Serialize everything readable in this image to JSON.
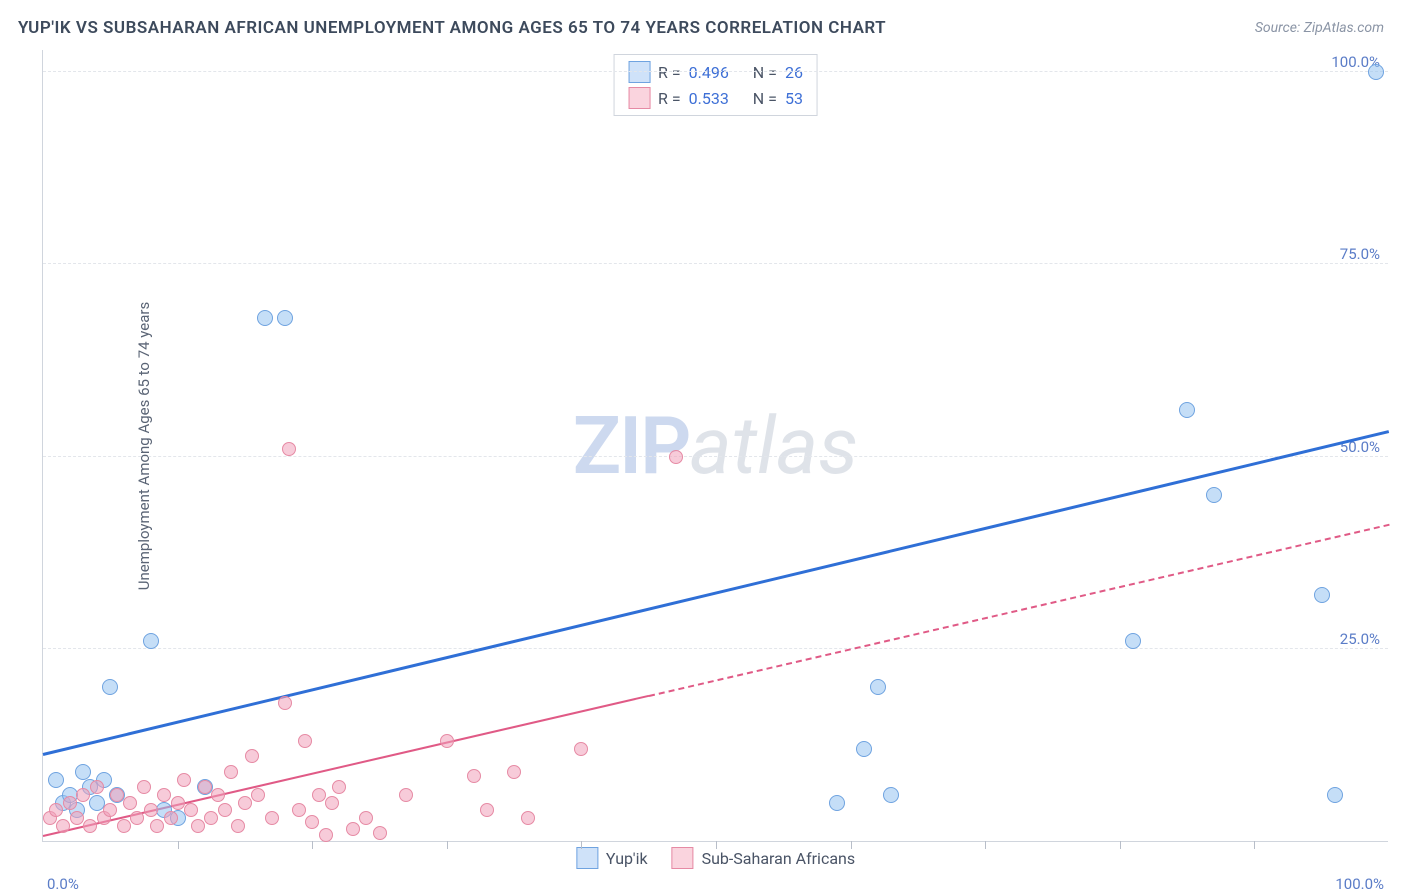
{
  "chart": {
    "type": "scatter",
    "title": "YUP'IK VS SUBSAHARAN AFRICAN UNEMPLOYMENT AMONG AGES 65 TO 74 YEARS CORRELATION CHART",
    "source": "Source: ZipAtlas.com",
    "y_axis_label": "Unemployment Among Ages 65 to 74 years",
    "background_color": "#ffffff",
    "grid_color": "#e3e6eb",
    "axis_color": "#d0d5dd",
    "tick_label_color": "#5a7cc7",
    "title_fontsize": 17,
    "label_fontsize": 15,
    "xlim": [
      0,
      100
    ],
    "ylim": [
      0,
      103
    ],
    "y_ticks": [
      {
        "v": 25,
        "label": "25.0%"
      },
      {
        "v": 50,
        "label": "50.0%"
      },
      {
        "v": 75,
        "label": "75.0%"
      },
      {
        "v": 100,
        "label": "100.0%"
      }
    ],
    "x_ticks_minor": [
      10,
      20,
      30,
      40,
      50,
      60,
      70,
      80,
      90
    ],
    "x_tick_left": "0.0%",
    "x_tick_right": "100.0%",
    "watermark": {
      "zip": "ZIP",
      "atlas": "atlas"
    },
    "legend_top": [
      {
        "swatch_fill": "#cfe2f9",
        "swatch_border": "#6fa3e0",
        "r_label": "R =",
        "r_val": "0.496",
        "n_label": "N =",
        "n_val": "26"
      },
      {
        "swatch_fill": "#fad4de",
        "swatch_border": "#e68aa4",
        "r_label": "R =",
        "r_val": "0.533",
        "n_label": "N =",
        "n_val": "53"
      }
    ],
    "legend_bottom": [
      {
        "swatch_fill": "#cfe2f9",
        "swatch_border": "#6fa3e0",
        "label": "Yup'ik"
      },
      {
        "swatch_fill": "#fad4de",
        "swatch_border": "#e68aa4",
        "label": "Sub-Saharan Africans"
      }
    ],
    "series": [
      {
        "name": "yupik",
        "marker_fill": "rgba(150,195,240,0.55)",
        "marker_stroke": "#6fa3e0",
        "marker_size": 16,
        "trend": {
          "x1": 0,
          "y1": 11,
          "x2": 100,
          "y2": 53,
          "color": "#2f6fd6",
          "width": 3,
          "dash": "solid",
          "dash_from_x": 100
        },
        "points": [
          {
            "x": 1,
            "y": 8
          },
          {
            "x": 1.5,
            "y": 5
          },
          {
            "x": 2,
            "y": 6
          },
          {
            "x": 2.5,
            "y": 4
          },
          {
            "x": 3,
            "y": 9
          },
          {
            "x": 3.5,
            "y": 7
          },
          {
            "x": 4,
            "y": 5
          },
          {
            "x": 4.5,
            "y": 8
          },
          {
            "x": 5,
            "y": 20
          },
          {
            "x": 5.5,
            "y": 6
          },
          {
            "x": 8,
            "y": 26
          },
          {
            "x": 9,
            "y": 4
          },
          {
            "x": 10,
            "y": 3
          },
          {
            "x": 12,
            "y": 7
          },
          {
            "x": 16.5,
            "y": 68
          },
          {
            "x": 18,
            "y": 68
          },
          {
            "x": 59,
            "y": 5
          },
          {
            "x": 61,
            "y": 12
          },
          {
            "x": 62,
            "y": 20
          },
          {
            "x": 63,
            "y": 6
          },
          {
            "x": 81,
            "y": 26
          },
          {
            "x": 85,
            "y": 56
          },
          {
            "x": 87,
            "y": 45
          },
          {
            "x": 95,
            "y": 32
          },
          {
            "x": 96,
            "y": 6
          },
          {
            "x": 99,
            "y": 100
          }
        ]
      },
      {
        "name": "subsaharan",
        "marker_fill": "rgba(240,160,185,0.55)",
        "marker_stroke": "#e68aa4",
        "marker_size": 14,
        "trend": {
          "x1": 0,
          "y1": 0.5,
          "x2": 100,
          "y2": 41,
          "color": "#e05a86",
          "width": 2,
          "dash": "dashed",
          "dash_from_x": 45
        },
        "points": [
          {
            "x": 0.5,
            "y": 3
          },
          {
            "x": 1,
            "y": 4
          },
          {
            "x": 1.5,
            "y": 2
          },
          {
            "x": 2,
            "y": 5
          },
          {
            "x": 2.5,
            "y": 3
          },
          {
            "x": 3,
            "y": 6
          },
          {
            "x": 3.5,
            "y": 2
          },
          {
            "x": 4,
            "y": 7
          },
          {
            "x": 4.5,
            "y": 3
          },
          {
            "x": 5,
            "y": 4
          },
          {
            "x": 5.5,
            "y": 6
          },
          {
            "x": 6,
            "y": 2
          },
          {
            "x": 6.5,
            "y": 5
          },
          {
            "x": 7,
            "y": 3
          },
          {
            "x": 7.5,
            "y": 7
          },
          {
            "x": 8,
            "y": 4
          },
          {
            "x": 8.5,
            "y": 2
          },
          {
            "x": 9,
            "y": 6
          },
          {
            "x": 9.5,
            "y": 3
          },
          {
            "x": 10,
            "y": 5
          },
          {
            "x": 10.5,
            "y": 8
          },
          {
            "x": 11,
            "y": 4
          },
          {
            "x": 11.5,
            "y": 2
          },
          {
            "x": 12,
            "y": 7
          },
          {
            "x": 12.5,
            "y": 3
          },
          {
            "x": 13,
            "y": 6
          },
          {
            "x": 13.5,
            "y": 4
          },
          {
            "x": 14,
            "y": 9
          },
          {
            "x": 14.5,
            "y": 2
          },
          {
            "x": 15,
            "y": 5
          },
          {
            "x": 15.5,
            "y": 11
          },
          {
            "x": 16,
            "y": 6
          },
          {
            "x": 17,
            "y": 3
          },
          {
            "x": 18,
            "y": 18
          },
          {
            "x": 18.3,
            "y": 51
          },
          {
            "x": 19,
            "y": 4
          },
          {
            "x": 19.5,
            "y": 13
          },
          {
            "x": 20,
            "y": 2.5
          },
          {
            "x": 20.5,
            "y": 6
          },
          {
            "x": 21,
            "y": 0.8
          },
          {
            "x": 21.5,
            "y": 5
          },
          {
            "x": 22,
            "y": 7
          },
          {
            "x": 23,
            "y": 1.5
          },
          {
            "x": 24,
            "y": 3
          },
          {
            "x": 25,
            "y": 1
          },
          {
            "x": 27,
            "y": 6
          },
          {
            "x": 30,
            "y": 13
          },
          {
            "x": 32,
            "y": 8.5
          },
          {
            "x": 33,
            "y": 4
          },
          {
            "x": 35,
            "y": 9
          },
          {
            "x": 36,
            "y": 3
          },
          {
            "x": 40,
            "y": 12
          },
          {
            "x": 47,
            "y": 50
          }
        ]
      }
    ]
  }
}
